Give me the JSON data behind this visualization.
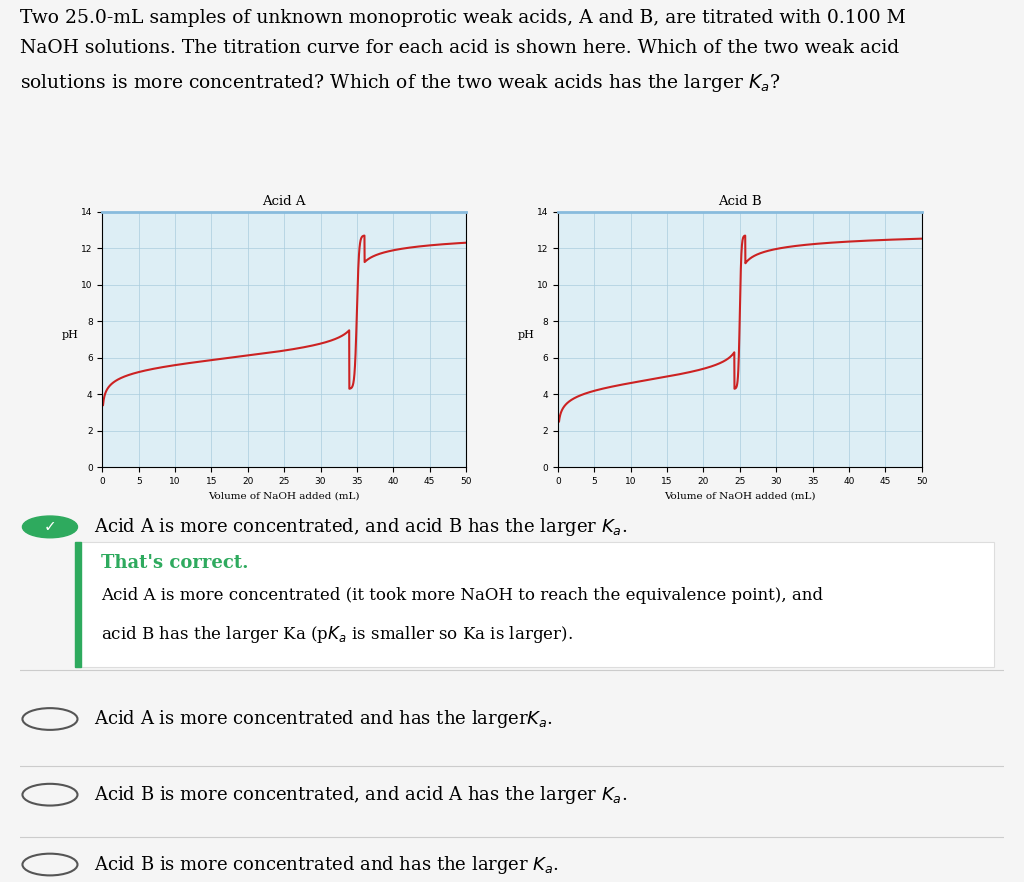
{
  "acid_a_title": "Acid A",
  "acid_b_title": "Acid B",
  "xlabel": "Volume of NaOH added (mL)",
  "ylabel": "pH",
  "xmin": 0,
  "xmax": 50,
  "ymin": 0,
  "ymax": 14,
  "acid_a_equiv_point": 35,
  "acid_a_pka": 6.0,
  "acid_a_start_ph": 3.7,
  "acid_b_equiv_point": 25,
  "acid_b_pka": 4.8,
  "acid_b_start_ph": 2.8,
  "curve_color": "#cc2222",
  "grid_color": "#aaccdd",
  "plot_bg": "#ddeef5",
  "check_color": "#2eaa5e",
  "sidebar_color": "#2eaa5e",
  "correct_color": "#2eaa5e",
  "page_bg": "#f5f5f5",
  "title_line_color": "#88bbdd",
  "divider_color": "#cccccc",
  "circle_color": "#555555",
  "white": "#ffffff",
  "box_edge_color": "#dddddd"
}
